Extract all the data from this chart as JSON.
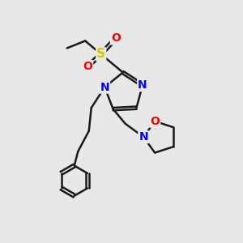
{
  "bg_color": "#e8e8e8",
  "bond_color": "#1a1a1a",
  "N_color": "#0000ff",
  "O_color": "#ff0000",
  "S_color": "#cccc00",
  "line_width": 1.8,
  "dbo": 0.055,
  "xlim": [
    0,
    10
  ],
  "ylim": [
    0,
    10
  ]
}
